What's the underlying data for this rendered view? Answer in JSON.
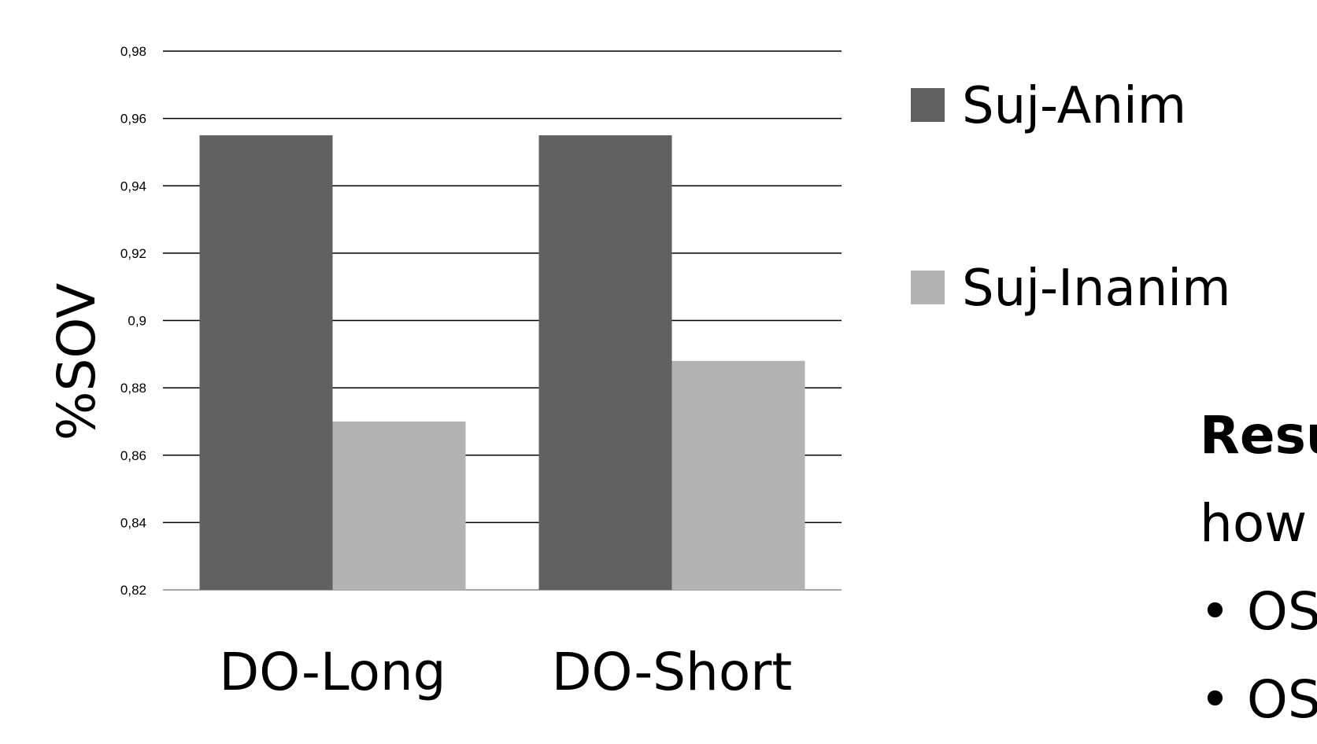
{
  "chart_data": {
    "type": "bar",
    "categories": [
      "DO-Long",
      "DO-Short"
    ],
    "series": [
      {
        "name": "Suj-Anim",
        "color": "#616161",
        "values": [
          0.955,
          0.955
        ]
      },
      {
        "name": "Suj-Inanim",
        "color": "#b3b3b3",
        "values": [
          0.87,
          0.888
        ]
      }
    ],
    "ylabel": "%SOV",
    "ylim": [
      0.82,
      0.98
    ],
    "yticks": [
      "0,82",
      "0,84",
      "0,86",
      "0,88",
      "0,9",
      "0,92",
      "0,94",
      "0,96",
      "0,98"
    ],
    "grid": true,
    "legend": "right"
  },
  "side_text": {
    "line1": "Resu",
    "line2": "how",
    "line3": "• OS",
    "line4": "• OS"
  }
}
